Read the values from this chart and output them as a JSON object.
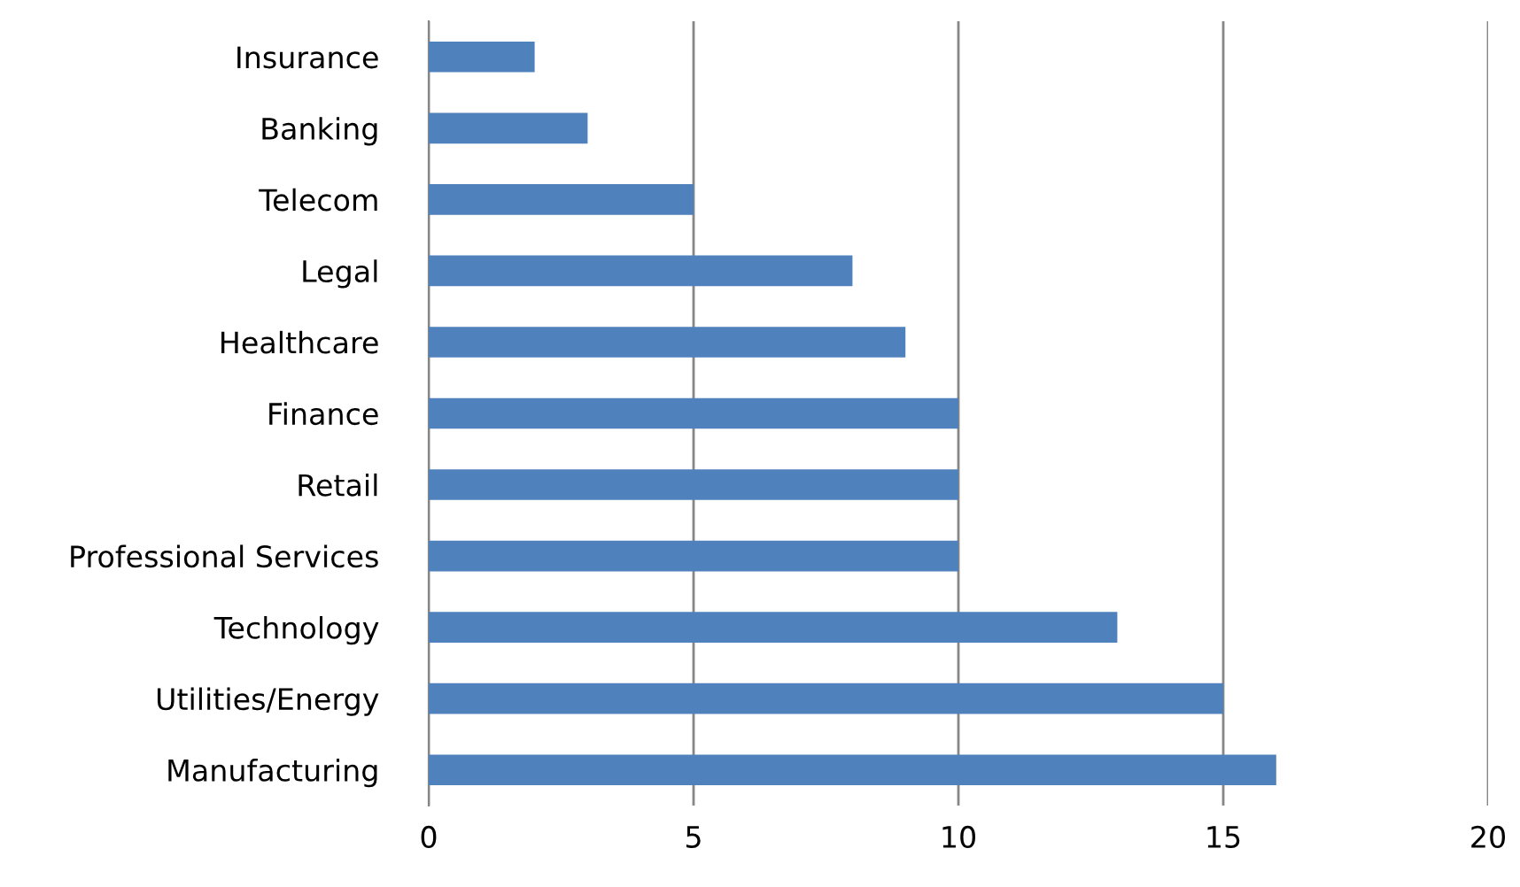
{
  "chart_data": {
    "type": "bar",
    "orientation": "horizontal",
    "categories": [
      "Insurance",
      "Banking",
      "Telecom",
      "Legal",
      "Healthcare",
      "Finance",
      "Retail",
      "Professional Services",
      "Technology",
      "Utilities/Energy",
      "Manufacturing"
    ],
    "values": [
      2,
      3,
      5,
      8,
      9,
      10,
      10,
      10,
      13,
      15,
      16
    ],
    "color": "#4f81bd",
    "xlim": [
      0,
      20
    ],
    "xticks": [
      0,
      5,
      10,
      15,
      20
    ],
    "grid": "x"
  }
}
